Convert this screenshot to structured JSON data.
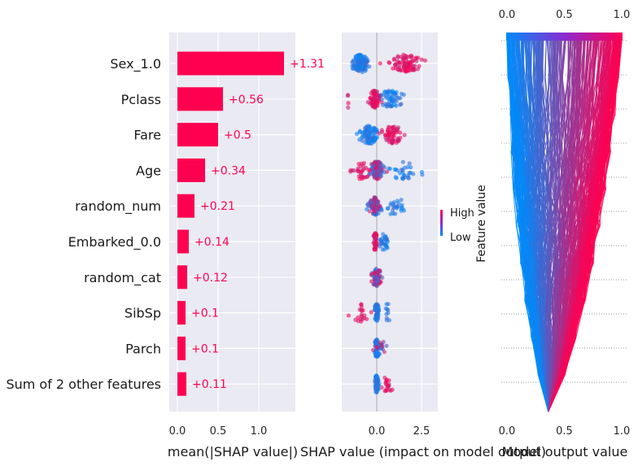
{
  "chart_data": [
    {
      "type": "bar",
      "orientation": "horizontal",
      "categories": [
        "Sex_1.0",
        "Pclass",
        "Fare",
        "Age",
        "random_num",
        "Embarked_0.0",
        "random_cat",
        "SibSp",
        "Parch",
        "Sum of 2 other features"
      ],
      "values": [
        1.31,
        0.56,
        0.5,
        0.34,
        0.21,
        0.14,
        0.12,
        0.1,
        0.1,
        0.11
      ],
      "value_labels": [
        "+1.31",
        "+0.56",
        "+0.5",
        "+0.34",
        "+0.21",
        "+0.14",
        "+0.12",
        "+0.1",
        "+0.1",
        "+0.11"
      ],
      "xlabel": "mean(|SHAP value|)",
      "xticks": [
        "0.0",
        "0.5",
        "1.0"
      ],
      "xlim": [
        0,
        1.42
      ],
      "bar_color": "#ff0051",
      "background": "#eaeaf2",
      "grid": true
    },
    {
      "type": "scatter",
      "subtype": "beeswarm",
      "categories": [
        "Sex_1.0",
        "Pclass",
        "Fare",
        "Age",
        "random_num",
        "Embarked_0.0",
        "random_cat",
        "SibSp",
        "Parch",
        "Sum of 2 other features"
      ],
      "xlabel": "SHAP value (impact on model output)",
      "xticks": [
        "0.0",
        "2.5"
      ],
      "xlim": [
        -1.9,
        3.1
      ],
      "legend": {
        "title": "Feature value",
        "high": "High",
        "low": "Low",
        "placement": "right"
      },
      "colors": {
        "low": "#008bfb",
        "high": "#ff0051"
      },
      "rows": [
        {
          "clusters": [
            {
              "center": -0.9,
              "spread": 0.5,
              "color": "low",
              "n": 110
            },
            {
              "center": 1.6,
              "spread": 0.9,
              "color": "high",
              "n": 90
            }
          ]
        },
        {
          "clusters": [
            {
              "center": -0.1,
              "spread": 0.3,
              "color": "high",
              "n": 70
            },
            {
              "center": 0.8,
              "spread": 0.7,
              "color": "low",
              "n": 55
            },
            {
              "center": -1.6,
              "spread": 0.1,
              "color": "high",
              "n": 4
            }
          ]
        },
        {
          "clusters": [
            {
              "center": -0.4,
              "spread": 0.6,
              "color": "low",
              "n": 90
            },
            {
              "center": 0.9,
              "spread": 0.6,
              "color": "high",
              "n": 60
            }
          ]
        },
        {
          "clusters": [
            {
              "center": 0.0,
              "spread": 0.4,
              "color": "mixed",
              "n": 100
            },
            {
              "center": -0.9,
              "spread": 0.6,
              "color": "high",
              "n": 30
            },
            {
              "center": 1.6,
              "spread": 1.2,
              "color": "low",
              "n": 30
            }
          ]
        },
        {
          "clusters": [
            {
              "center": -0.1,
              "spread": 0.35,
              "color": "mixed",
              "n": 90
            },
            {
              "center": 1.0,
              "spread": 0.8,
              "color": "low",
              "n": 25
            }
          ]
        },
        {
          "clusters": [
            {
              "center": -0.1,
              "spread": 0.1,
              "color": "high",
              "n": 50
            },
            {
              "center": 0.4,
              "spread": 0.25,
              "color": "low",
              "n": 30
            }
          ]
        },
        {
          "clusters": [
            {
              "center": 0.0,
              "spread": 0.3,
              "color": "mixed",
              "n": 80
            }
          ]
        },
        {
          "clusters": [
            {
              "center": 0.0,
              "spread": 0.12,
              "color": "low",
              "n": 60
            },
            {
              "center": -0.9,
              "spread": 0.5,
              "color": "high",
              "n": 20
            },
            {
              "center": 0.6,
              "spread": 0.25,
              "color": "low",
              "n": 10
            }
          ]
        },
        {
          "clusters": [
            {
              "center": 0.0,
              "spread": 0.12,
              "color": "low",
              "n": 60
            },
            {
              "center": 0.3,
              "spread": 0.3,
              "color": "mixed",
              "n": 20
            }
          ]
        },
        {
          "clusters": [
            {
              "center": 0.0,
              "spread": 0.12,
              "color": "low",
              "n": 50
            },
            {
              "center": 0.6,
              "spread": 0.3,
              "color": "high",
              "n": 20
            }
          ]
        }
      ]
    },
    {
      "type": "line",
      "subtype": "decision-plot",
      "xlabel": "Model output value",
      "xticks": [
        "0.0",
        "0.5",
        "1.0"
      ],
      "xlim": [
        0,
        1
      ],
      "base_value": 0.36,
      "n_lines": 420,
      "colors": {
        "low": "#008bfb",
        "high": "#ff0051"
      }
    }
  ]
}
